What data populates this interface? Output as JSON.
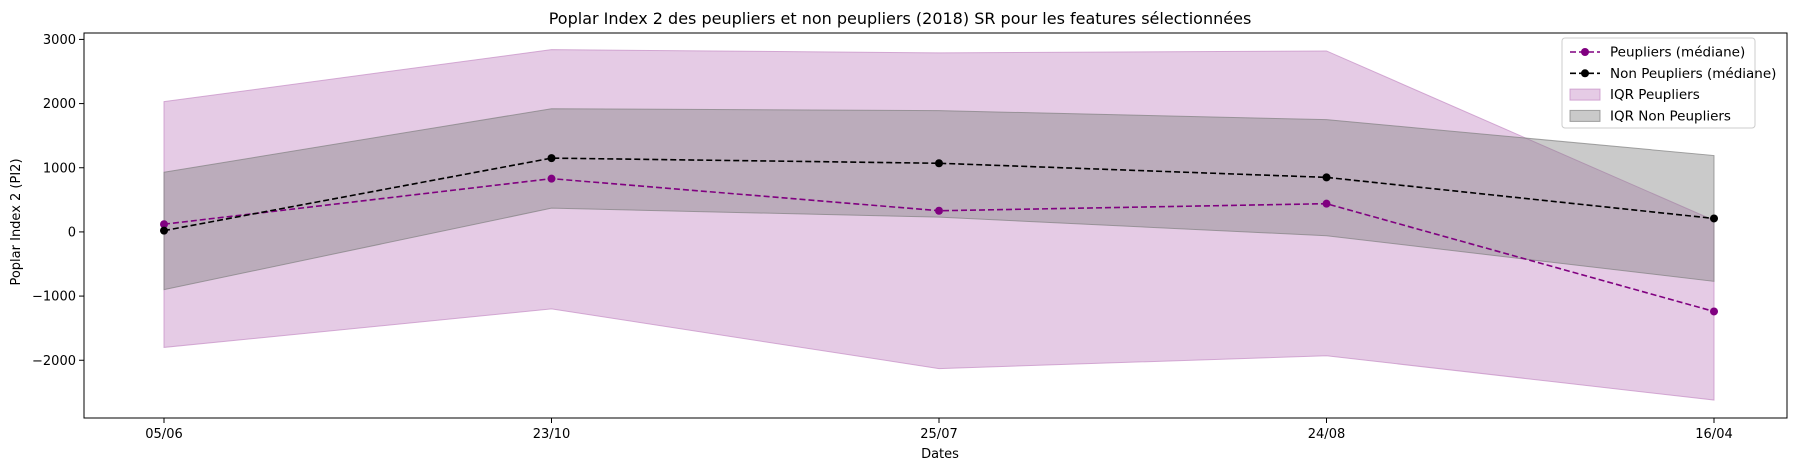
{
  "chart_data": {
    "type": "line",
    "title": "Poplar Index 2 des peupliers et non peupliers (2018) SR pour les features sélectionnées",
    "xlabel": "Dates",
    "ylabel": "Poplar Index 2 (PI2)",
    "categories": [
      "05/06",
      "23/10",
      "25/07",
      "24/08",
      "16/04"
    ],
    "ylim": [
      -2900,
      3100
    ],
    "yticks": [
      -2000,
      -1000,
      0,
      1000,
      2000,
      3000
    ],
    "ytick_labels": [
      "−2000",
      "−1000",
      "0",
      "1000",
      "2000",
      "3000"
    ],
    "grid": false,
    "legend_position": "top-right",
    "series": [
      {
        "name": "Peupliers (médiane)",
        "values": [
          120,
          830,
          330,
          440,
          -1240
        ],
        "color": "#800080",
        "style": "dashed-marker"
      },
      {
        "name": "Non Peupliers (médiane)",
        "values": [
          20,
          1150,
          1070,
          850,
          210
        ],
        "color": "#000000",
        "style": "dashed-marker"
      }
    ],
    "bands": [
      {
        "name": "IQR Peupliers",
        "lower": [
          -1800,
          -1200,
          -2130,
          -1930,
          -2620
        ],
        "upper": [
          2030,
          2840,
          2790,
          2820,
          180
        ],
        "color": "#c58bc5",
        "opacity": 0.45
      },
      {
        "name": "IQR Non Peupliers",
        "lower": [
          -900,
          370,
          230,
          -60,
          -770
        ],
        "upper": [
          930,
          1920,
          1890,
          1750,
          1190
        ],
        "color": "#808080",
        "opacity": 0.42
      }
    ],
    "legend": [
      "Peupliers (médiane)",
      "Non Peupliers (médiane)",
      "IQR Peupliers",
      "IQR Non Peupliers"
    ]
  }
}
